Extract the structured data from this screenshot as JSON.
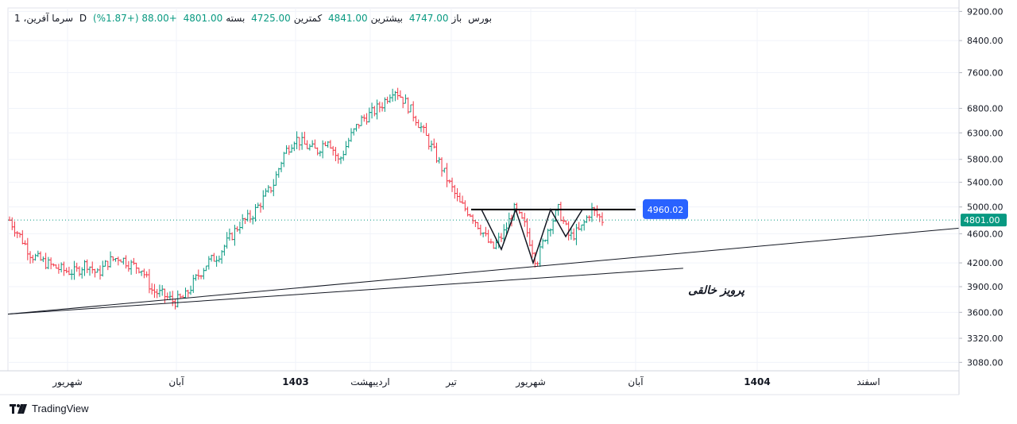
{
  "legend": {
    "symbol": "سرما آفرین، 1",
    "interval": "D",
    "exchange": "بورس",
    "open_label": "باز",
    "open": "4747.00",
    "high_label": "بیشترین",
    "high": "4841.00",
    "low_label": "کمترین",
    "low": "4725.00",
    "close_label": "بسته",
    "close": "4801.00",
    "change": "+88.00 (+1.87%)"
  },
  "brand": "TradingView",
  "annotation_text": "پرویز خالقی",
  "chart_data": {
    "type": "ohlc",
    "y_scale": "log",
    "ylim": [
      3000,
      9300
    ],
    "y_ticks": [
      "9200.00",
      "8400.00",
      "7600.00",
      "6800.00",
      "6300.00",
      "5800.00",
      "5400.00",
      "5000.00",
      "4600.00",
      "4200.00",
      "3900.00",
      "3600.00",
      "3320.00",
      "3080.00"
    ],
    "x_ticks": [
      "شهریور",
      "آبان",
      "1403",
      "اردیبهشت",
      "تیر",
      "شهریور",
      "آبان",
      "1404",
      "اسفند"
    ],
    "bold_x_ticks": [
      "1403",
      "1404"
    ],
    "last_price": "4801.00",
    "level_label": "4960.02",
    "level_value": 4960.02,
    "colors": {
      "up": "#089981",
      "down": "#f23645",
      "label": "#2962ff",
      "grid": "#f0f3fa",
      "last_price_bg": "#089981"
    },
    "price_path": [
      4800,
      4550,
      4300,
      4220,
      4150,
      4100,
      4080,
      4200,
      4050,
      4220,
      4280,
      4180,
      4130,
      3850,
      3800,
      3720,
      3780,
      4000,
      4200,
      4300,
      4520,
      4750,
      4850,
      5100,
      5350,
      5900,
      6200,
      6050,
      5950,
      6200,
      5750,
      6200,
      6550,
      6700,
      6900,
      7250,
      6950,
      6600,
      6200,
      5800,
      5400,
      5050,
      4900,
      4650,
      4380,
      4600,
      4960,
      4700,
      4200,
      4650,
      4960,
      4550,
      4650,
      4960,
      4801
    ],
    "drawn_lines": [
      {
        "from": [
          0,
          3580
        ],
        "to": [
          1.0,
          4680
        ]
      },
      {
        "from": [
          0,
          3580
        ],
        "to": [
          0.71,
          4130
        ]
      },
      {
        "level": 4960.02
      },
      {
        "pattern": [
          4960,
          4380,
          4960,
          4200,
          4960,
          4560,
          4960
        ]
      }
    ]
  }
}
